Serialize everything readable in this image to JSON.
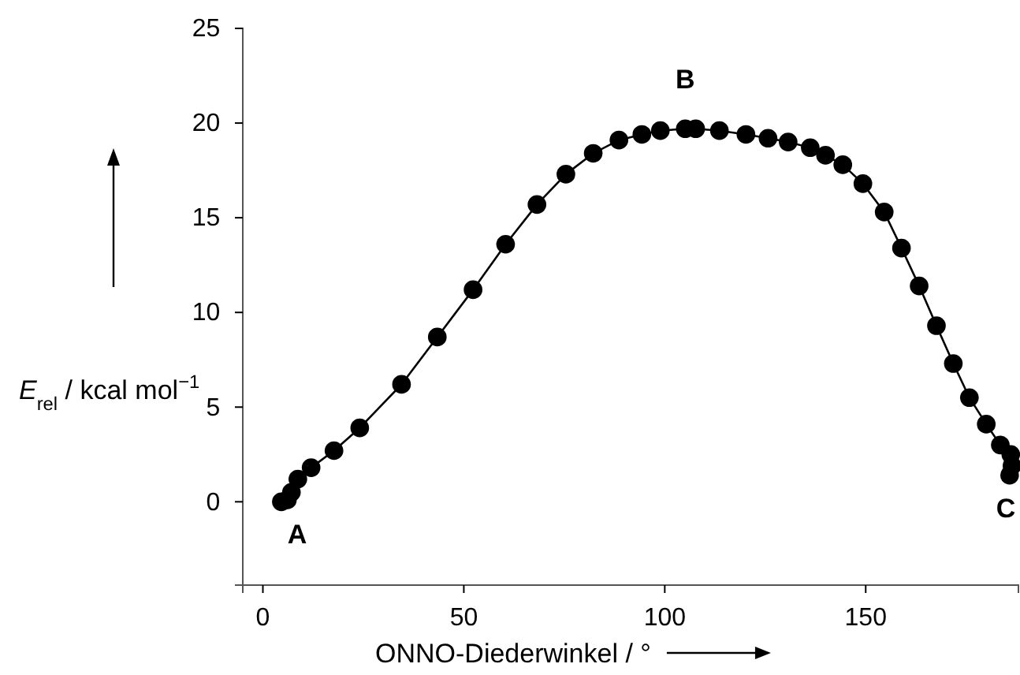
{
  "chart_data": {
    "type": "line",
    "xlabel": "ONNO-Diederwinkel / °",
    "ylabel": "E$_{rel}$ / kcal mol$^{−1}$",
    "xlim": [
      -5,
      188
    ],
    "ylim": [
      -4.4,
      25
    ],
    "xticks": [
      0,
      50,
      100,
      150
    ],
    "yticks": [
      0,
      5,
      10,
      15,
      20,
      25
    ],
    "grid": false,
    "marker": "circle",
    "line_style": "solid",
    "series": [
      {
        "color": "#000000",
        "x": [
          4.6,
          6.1,
          7.1,
          8.7,
          12,
          17.7,
          24.1,
          34.5,
          43.4,
          52.3,
          60.4,
          68.2,
          75.4,
          82.2,
          88.6,
          94.3,
          98.9,
          105.1,
          107.7,
          113.6,
          120.2,
          125.7,
          130.7,
          136.2,
          140,
          144.3,
          149.3,
          154.6,
          158.9,
          163.3,
          167.6,
          171.8,
          175.8,
          180,
          183.5,
          186.1,
          186.4,
          185.8
        ],
        "values": [
          0,
          0.1,
          0.5,
          1.2,
          1.8,
          2.7,
          3.9,
          6.2,
          8.7,
          11.2,
          13.6,
          15.7,
          17.3,
          18.4,
          19.1,
          19.4,
          19.6,
          19.7,
          19.7,
          19.6,
          19.4,
          19.2,
          19.0,
          18.7,
          18.3,
          17.8,
          16.8,
          15.3,
          13.4,
          11.4,
          9.3,
          7.3,
          5.5,
          4.1,
          3.0,
          2.5,
          1.9,
          1.4
        ]
      }
    ],
    "annotations": [
      {
        "text": "A",
        "x": 4.6,
        "y": 0
      },
      {
        "text": "B",
        "x": 105.1,
        "y": 19.7
      },
      {
        "text": "C",
        "x": 185.8,
        "y": 1.4
      }
    ]
  }
}
